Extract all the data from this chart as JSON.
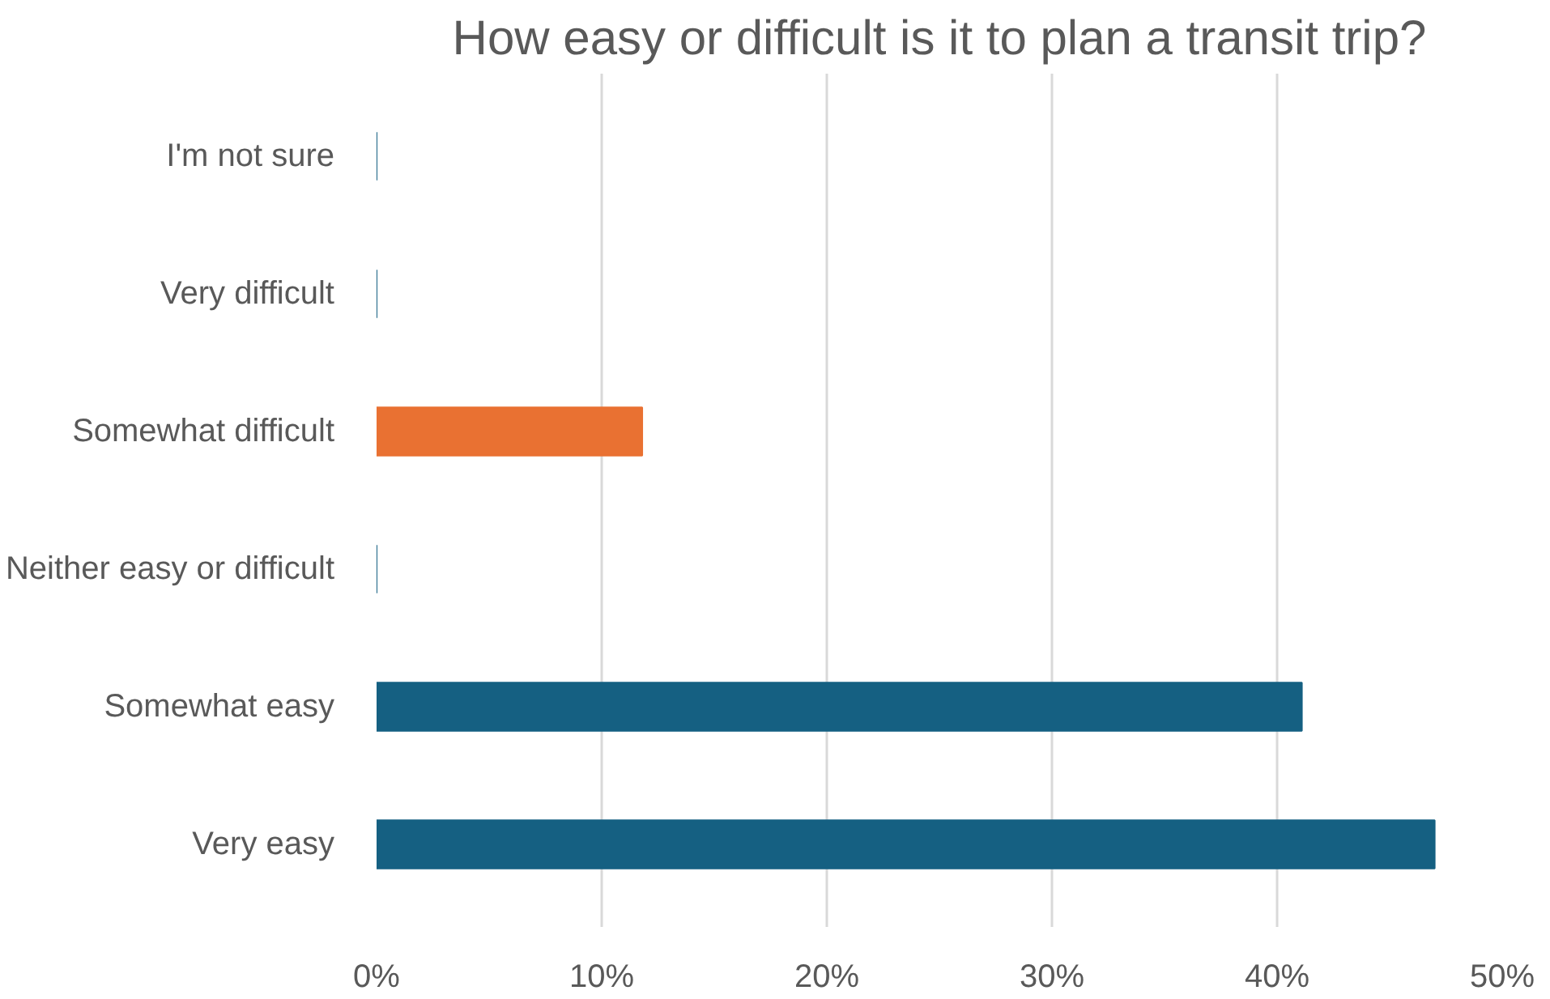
{
  "chart_data": {
    "type": "bar",
    "orientation": "horizontal",
    "title": "How easy or difficult is it to plan a transit trip?",
    "categories": [
      "I'm not sure",
      "Very difficult",
      "Somewhat difficult",
      "Neither easy or difficult",
      "Somewhat easy",
      "Very easy"
    ],
    "values": [
      0,
      0,
      11.8,
      0,
      41.1,
      47.0
    ],
    "colors": [
      "#156082",
      "#156082",
      "#e97132",
      "#156082",
      "#156082",
      "#156082"
    ],
    "xlim": [
      0,
      50
    ],
    "xticks": [
      {
        "value": 0,
        "label": "0%"
      },
      {
        "value": 10,
        "label": "10%"
      },
      {
        "value": 20,
        "label": "20%"
      },
      {
        "value": 30,
        "label": "30%"
      },
      {
        "value": 40,
        "label": "40%"
      },
      {
        "value": 50,
        "label": "50%"
      }
    ],
    "grid": "x"
  }
}
